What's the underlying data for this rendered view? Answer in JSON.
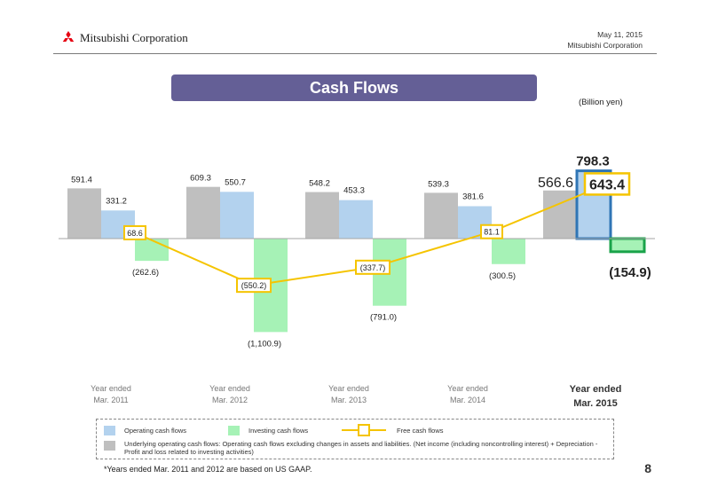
{
  "header": {
    "company": "Mitsubishi Corporation",
    "date": "May 11, 2015",
    "company_right": "Mitsubishi Corporation"
  },
  "title": "Cash Flows",
  "unit_label": "(Billion yen)",
  "chart_data": {
    "type": "bar",
    "categories": [
      [
        "Year ended",
        "Mar. 2011"
      ],
      [
        "Year ended",
        "Mar. 2012"
      ],
      [
        "Year ended",
        "Mar. 2013"
      ],
      [
        "Year ended",
        "Mar. 2014"
      ],
      [
        "Year ended",
        "Mar. 2015"
      ]
    ],
    "highlight_category": 4,
    "series": [
      {
        "name": "Underlying operating cash flows",
        "kind": "bar",
        "color": "#bfbfbf",
        "values": [
          591.4,
          609.3,
          548.2,
          539.3,
          566.6
        ],
        "labels": [
          "591.4",
          "609.3",
          "548.2",
          "539.3",
          "566.6"
        ]
      },
      {
        "name": "Operating cash flows",
        "kind": "bar",
        "color": "#b3d2ee",
        "values": [
          331.2,
          550.7,
          453.3,
          381.6,
          798.3
        ],
        "labels": [
          "331.2",
          "550.7",
          "453.3",
          "381.6",
          "798.3"
        ]
      },
      {
        "name": "Investing cash flows",
        "kind": "bar",
        "color": "#a6f2b6",
        "values": [
          -262.6,
          -1100.9,
          -791.0,
          -300.5,
          -154.9
        ],
        "labels": [
          "(262.6)",
          "(1,100.9)",
          "(791.0)",
          "(300.5)",
          "(154.9)"
        ]
      },
      {
        "name": "Free cash flows",
        "kind": "line",
        "color": "#f5c400",
        "values": [
          68.6,
          -550.2,
          -337.7,
          81.1,
          643.4
        ],
        "labels": [
          "68.6",
          "(550.2)",
          "(337.7)",
          "81.1",
          "643.4"
        ]
      }
    ],
    "ylim": [
      -1100.9,
      798.3
    ]
  },
  "legend": {
    "operating": "Operating cash flows",
    "investing": "Investing cash flows",
    "free": "Free cash flows",
    "underlying": "Underlying operating cash flows: Operating cash flows excluding changes in assets and liabilities. (Net income (including noncontrolling interest) + Depreciation - Profit and loss related to investing activities)"
  },
  "footnote": "*Years ended Mar. 2011 and 2012 are based on US GAAP.",
  "page_number": "8"
}
